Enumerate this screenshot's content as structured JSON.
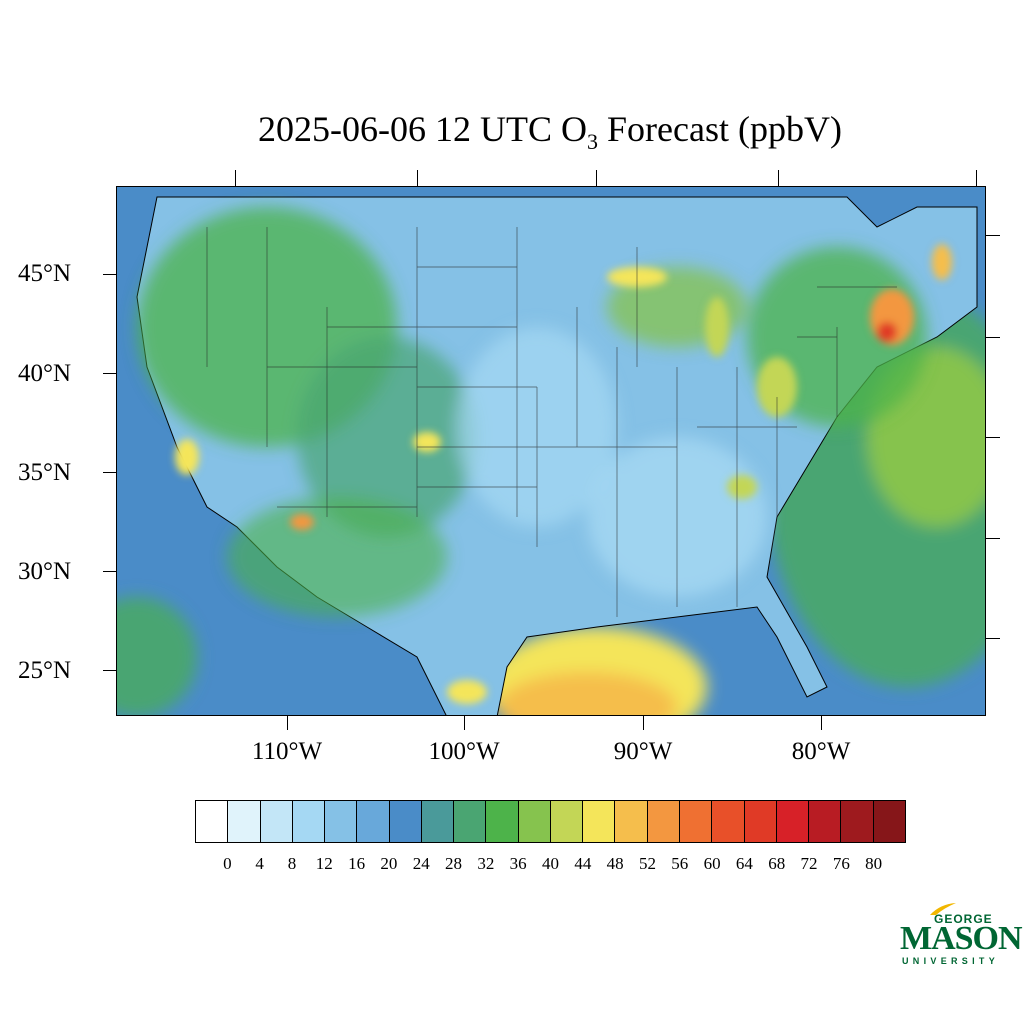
{
  "title": {
    "prefix": "2025-06-06 12 UTC O",
    "subscript": "3",
    "suffix": " Forecast (ppbV)"
  },
  "lat_labels": [
    "45°N",
    "40°N",
    "35°N",
    "30°N",
    "25°N"
  ],
  "lon_labels": [
    "110°W",
    "100°W",
    "90°W",
    "80°W"
  ],
  "colorbar": {
    "labels": [
      "0",
      "4",
      "8",
      "12",
      "16",
      "20",
      "24",
      "28",
      "32",
      "36",
      "40",
      "44",
      "48",
      "52",
      "56",
      "60",
      "64",
      "68",
      "72",
      "76",
      "80"
    ],
    "colors": [
      "#ffffff",
      "#e0f3fb",
      "#c3e6f7",
      "#a5d8f3",
      "#85c1e6",
      "#68a8da",
      "#4a8cc8",
      "#4a9a9a",
      "#4aa572",
      "#4db34a",
      "#86c34e",
      "#c3d656",
      "#f4e55a",
      "#f5be4c",
      "#f39740",
      "#ef7032",
      "#e85029",
      "#e03a26",
      "#d72128",
      "#b81c23",
      "#9e1a1e",
      "#861619"
    ]
  },
  "map": {
    "ocean_color": "#4a8cc8",
    "land_base_color": "#85c1e6",
    "high_region_color": "#4db34a",
    "peak_color": "#e03a26"
  },
  "logo": {
    "line1": "GEORGE",
    "line2": "MASON",
    "line3": "UNIVERSITY",
    "color": "#006633",
    "accent": "#f2b700"
  }
}
